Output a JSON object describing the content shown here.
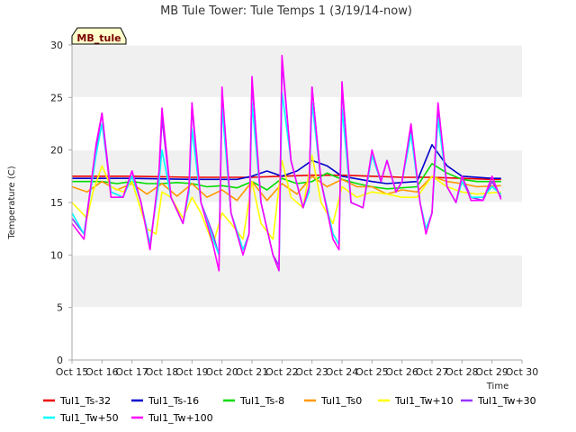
{
  "chart_data": {
    "type": "line",
    "title": "MB Tule Tower: Tule Temps 1 (3/19/14-now)",
    "xlabel": "Time",
    "ylabel": "Temperature (C)",
    "ylim": [
      0,
      30
    ],
    "yticks": [
      0,
      5,
      10,
      15,
      20,
      25,
      30
    ],
    "xlim": [
      15,
      30
    ],
    "x_tick_labels": [
      "Oct 15",
      "Oct 16",
      "Oct 17",
      "Oct 18",
      "Oct 19",
      "Oct 20",
      "Oct 21",
      "Oct 22",
      "Oct 23",
      "Oct 24",
      "Oct 25",
      "Oct 26",
      "Oct 27",
      "Oct 28",
      "Oct 29",
      "Oct 30"
    ],
    "badge": "MB_tule",
    "grid": "horizontal bands",
    "legend_position": "bottom",
    "series": [
      {
        "name": "Tul1_Ts-32",
        "color": "#ee0000",
        "points": [
          [
            15.0,
            17.5
          ],
          [
            17.0,
            17.5
          ],
          [
            19.0,
            17.4
          ],
          [
            21.0,
            17.4
          ],
          [
            22.0,
            17.5
          ],
          [
            23.0,
            17.6
          ],
          [
            24.0,
            17.6
          ],
          [
            25.0,
            17.5
          ],
          [
            26.0,
            17.4
          ],
          [
            27.0,
            17.4
          ],
          [
            28.0,
            17.3
          ],
          [
            29.0,
            17.2
          ],
          [
            29.3,
            17.2
          ]
        ]
      },
      {
        "name": "Tul1_Ts-16",
        "color": "#0000cc",
        "points": [
          [
            15.0,
            17.3
          ],
          [
            17.0,
            17.3
          ],
          [
            19.0,
            17.2
          ],
          [
            20.5,
            17.2
          ],
          [
            21.0,
            17.5
          ],
          [
            21.5,
            18.0
          ],
          [
            22.0,
            17.5
          ],
          [
            22.5,
            18.0
          ],
          [
            23.0,
            19.0
          ],
          [
            23.5,
            18.5
          ],
          [
            24.0,
            17.5
          ],
          [
            25.0,
            17.0
          ],
          [
            25.5,
            16.8
          ],
          [
            26.0,
            16.9
          ],
          [
            26.5,
            17.0
          ],
          [
            27.0,
            20.5
          ],
          [
            27.5,
            18.5
          ],
          [
            28.0,
            17.5
          ],
          [
            29.0,
            17.3
          ],
          [
            29.3,
            17.3
          ]
        ]
      },
      {
        "name": "Tul1_Ts-8",
        "color": "#00dd00",
        "points": [
          [
            15.0,
            17.0
          ],
          [
            16.0,
            17.0
          ],
          [
            16.5,
            16.8
          ],
          [
            17.0,
            17.0
          ],
          [
            17.5,
            16.8
          ],
          [
            18.0,
            16.8
          ],
          [
            18.5,
            16.9
          ],
          [
            19.0,
            16.8
          ],
          [
            19.5,
            16.5
          ],
          [
            20.0,
            16.6
          ],
          [
            20.5,
            16.4
          ],
          [
            21.0,
            17.0
          ],
          [
            21.5,
            16.2
          ],
          [
            22.0,
            17.3
          ],
          [
            22.5,
            16.8
          ],
          [
            23.0,
            17.0
          ],
          [
            23.5,
            17.8
          ],
          [
            24.0,
            17.2
          ],
          [
            24.5,
            16.8
          ],
          [
            25.0,
            16.5
          ],
          [
            25.5,
            16.3
          ],
          [
            26.0,
            16.4
          ],
          [
            26.5,
            16.5
          ],
          [
            27.0,
            18.7
          ],
          [
            27.5,
            17.8
          ],
          [
            28.0,
            17.2
          ],
          [
            28.5,
            17.0
          ],
          [
            29.3,
            17.0
          ]
        ]
      },
      {
        "name": "Tul1_Ts0",
        "color": "#ff9900",
        "points": [
          [
            15.0,
            16.5
          ],
          [
            15.5,
            16.0
          ],
          [
            16.0,
            17.0
          ],
          [
            16.5,
            16.2
          ],
          [
            17.0,
            16.8
          ],
          [
            17.5,
            15.8
          ],
          [
            18.0,
            16.8
          ],
          [
            18.5,
            15.6
          ],
          [
            19.0,
            16.8
          ],
          [
            19.5,
            15.5
          ],
          [
            20.0,
            16.2
          ],
          [
            20.5,
            15.2
          ],
          [
            21.0,
            17.0
          ],
          [
            21.5,
            15.2
          ],
          [
            22.0,
            16.8
          ],
          [
            22.5,
            15.8
          ],
          [
            23.0,
            17.5
          ],
          [
            23.5,
            16.5
          ],
          [
            24.0,
            17.2
          ],
          [
            24.5,
            16.5
          ],
          [
            25.0,
            16.5
          ],
          [
            25.5,
            15.8
          ],
          [
            26.0,
            16.2
          ],
          [
            26.5,
            16.0
          ],
          [
            27.0,
            17.5
          ],
          [
            27.5,
            17.0
          ],
          [
            28.0,
            16.8
          ],
          [
            28.5,
            16.5
          ],
          [
            29.3,
            16.6
          ]
        ]
      },
      {
        "name": "Tul1_Tw+10",
        "color": "#ffff00",
        "points": [
          [
            15.0,
            15.0
          ],
          [
            15.5,
            13.5
          ],
          [
            15.7,
            16.0
          ],
          [
            16.0,
            18.5
          ],
          [
            16.3,
            16.5
          ],
          [
            16.7,
            16.0
          ],
          [
            17.0,
            17.0
          ],
          [
            17.5,
            12.5
          ],
          [
            17.8,
            12.0
          ],
          [
            18.0,
            16.0
          ],
          [
            18.3,
            15.5
          ],
          [
            18.7,
            13.5
          ],
          [
            19.0,
            15.5
          ],
          [
            19.3,
            14.0
          ],
          [
            19.7,
            11.0
          ],
          [
            20.0,
            14.0
          ],
          [
            20.3,
            13.0
          ],
          [
            20.7,
            11.5
          ],
          [
            21.0,
            17.0
          ],
          [
            21.3,
            13.0
          ],
          [
            21.7,
            11.5
          ],
          [
            22.0,
            19.0
          ],
          [
            22.3,
            15.5
          ],
          [
            22.7,
            14.5
          ],
          [
            23.0,
            19.5
          ],
          [
            23.3,
            15.0
          ],
          [
            23.7,
            13.0
          ],
          [
            24.0,
            16.5
          ],
          [
            24.5,
            15.5
          ],
          [
            25.0,
            16.0
          ],
          [
            25.5,
            15.8
          ],
          [
            26.0,
            15.5
          ],
          [
            26.5,
            15.5
          ],
          [
            27.0,
            17.5
          ],
          [
            27.5,
            16.5
          ],
          [
            28.0,
            16.0
          ],
          [
            28.5,
            15.8
          ],
          [
            29.3,
            16.0
          ]
        ]
      },
      {
        "name": "Tul1_Tw+30",
        "color": "#9933ff",
        "points": [
          [
            15.0,
            13.5
          ],
          [
            15.4,
            12.0
          ],
          [
            15.8,
            20.0
          ],
          [
            16.0,
            23.5
          ],
          [
            16.3,
            16.0
          ],
          [
            16.7,
            15.5
          ],
          [
            17.0,
            18.0
          ],
          [
            17.3,
            15.0
          ],
          [
            17.6,
            11.0
          ],
          [
            17.9,
            17.5
          ],
          [
            18.0,
            23.0
          ],
          [
            18.3,
            15.5
          ],
          [
            18.7,
            13.0
          ],
          [
            18.9,
            16.0
          ],
          [
            19.0,
            24.0
          ],
          [
            19.3,
            15.0
          ],
          [
            19.7,
            12.0
          ],
          [
            19.9,
            10.0
          ],
          [
            20.0,
            25.5
          ],
          [
            20.3,
            14.0
          ],
          [
            20.7,
            10.5
          ],
          [
            20.9,
            12.0
          ],
          [
            21.0,
            26.5
          ],
          [
            21.3,
            15.0
          ],
          [
            21.7,
            10.0
          ],
          [
            21.9,
            9.0
          ],
          [
            22.0,
            28.5
          ],
          [
            22.3,
            19.0
          ],
          [
            22.7,
            14.5
          ],
          [
            22.9,
            16.0
          ],
          [
            23.0,
            26.0
          ],
          [
            23.3,
            17.0
          ],
          [
            23.7,
            12.0
          ],
          [
            23.9,
            11.0
          ],
          [
            24.0,
            26.0
          ],
          [
            24.3,
            15.0
          ],
          [
            24.7,
            14.5
          ],
          [
            25.0,
            19.5
          ],
          [
            25.3,
            17.0
          ],
          [
            25.5,
            19.0
          ],
          [
            25.8,
            16.0
          ],
          [
            26.0,
            17.0
          ],
          [
            26.3,
            22.0
          ],
          [
            26.6,
            15.0
          ],
          [
            26.8,
            12.5
          ],
          [
            27.0,
            14.0
          ],
          [
            27.2,
            24.0
          ],
          [
            27.5,
            16.5
          ],
          [
            27.8,
            15.0
          ],
          [
            28.0,
            17.5
          ],
          [
            28.3,
            15.5
          ],
          [
            28.7,
            15.2
          ],
          [
            29.0,
            17.0
          ],
          [
            29.3,
            15.5
          ]
        ]
      },
      {
        "name": "Tul1_Tw+50",
        "color": "#00ffff",
        "points": [
          [
            15.0,
            14.0
          ],
          [
            15.4,
            12.0
          ],
          [
            15.8,
            19.5
          ],
          [
            16.0,
            22.5
          ],
          [
            16.3,
            16.0
          ],
          [
            16.7,
            15.5
          ],
          [
            17.0,
            17.5
          ],
          [
            17.3,
            15.0
          ],
          [
            17.6,
            11.0
          ],
          [
            17.9,
            17.0
          ],
          [
            18.0,
            20.0
          ],
          [
            18.3,
            15.5
          ],
          [
            18.7,
            13.0
          ],
          [
            18.9,
            16.0
          ],
          [
            19.0,
            22.0
          ],
          [
            19.3,
            15.0
          ],
          [
            19.7,
            11.5
          ],
          [
            19.9,
            10.0
          ],
          [
            20.0,
            24.0
          ],
          [
            20.3,
            14.0
          ],
          [
            20.7,
            10.5
          ],
          [
            20.9,
            12.0
          ],
          [
            21.0,
            24.5
          ],
          [
            21.3,
            15.0
          ],
          [
            21.7,
            10.0
          ],
          [
            21.9,
            8.5
          ],
          [
            22.0,
            25.5
          ],
          [
            22.3,
            19.0
          ],
          [
            22.7,
            14.5
          ],
          [
            22.9,
            16.0
          ],
          [
            23.0,
            24.5
          ],
          [
            23.3,
            17.0
          ],
          [
            23.7,
            12.0
          ],
          [
            23.9,
            11.0
          ],
          [
            24.0,
            24.0
          ],
          [
            24.3,
            15.0
          ],
          [
            24.7,
            14.5
          ],
          [
            25.0,
            19.5
          ],
          [
            25.3,
            17.0
          ],
          [
            25.5,
            19.0
          ],
          [
            25.8,
            16.0
          ],
          [
            26.0,
            17.0
          ],
          [
            26.3,
            21.5
          ],
          [
            26.6,
            15.0
          ],
          [
            26.8,
            12.5
          ],
          [
            27.0,
            14.0
          ],
          [
            27.2,
            23.0
          ],
          [
            27.5,
            16.5
          ],
          [
            27.8,
            15.0
          ],
          [
            28.0,
            17.0
          ],
          [
            28.3,
            15.5
          ],
          [
            28.7,
            15.5
          ],
          [
            29.0,
            16.5
          ],
          [
            29.3,
            15.8
          ]
        ]
      },
      {
        "name": "Tul1_Tw+100",
        "color": "#ff00ff",
        "points": [
          [
            15.0,
            13.0
          ],
          [
            15.4,
            11.5
          ],
          [
            15.8,
            20.5
          ],
          [
            16.0,
            23.5
          ],
          [
            16.3,
            15.5
          ],
          [
            16.7,
            15.5
          ],
          [
            17.0,
            18.0
          ],
          [
            17.3,
            15.0
          ],
          [
            17.6,
            10.5
          ],
          [
            17.9,
            18.0
          ],
          [
            18.0,
            24.0
          ],
          [
            18.3,
            15.5
          ],
          [
            18.7,
            13.0
          ],
          [
            18.9,
            16.5
          ],
          [
            19.0,
            24.5
          ],
          [
            19.3,
            15.0
          ],
          [
            19.7,
            11.0
          ],
          [
            19.9,
            8.5
          ],
          [
            20.0,
            26.0
          ],
          [
            20.3,
            14.0
          ],
          [
            20.7,
            10.0
          ],
          [
            20.9,
            12.0
          ],
          [
            21.0,
            27.0
          ],
          [
            21.3,
            15.0
          ],
          [
            21.7,
            10.0
          ],
          [
            21.9,
            8.5
          ],
          [
            22.0,
            29.0
          ],
          [
            22.3,
            19.0
          ],
          [
            22.7,
            14.5
          ],
          [
            22.9,
            16.5
          ],
          [
            23.0,
            26.0
          ],
          [
            23.3,
            17.0
          ],
          [
            23.7,
            11.5
          ],
          [
            23.9,
            10.5
          ],
          [
            24.0,
            26.5
          ],
          [
            24.3,
            15.0
          ],
          [
            24.7,
            14.5
          ],
          [
            25.0,
            20.0
          ],
          [
            25.3,
            17.0
          ],
          [
            25.5,
            19.0
          ],
          [
            25.8,
            16.0
          ],
          [
            26.0,
            17.0
          ],
          [
            26.3,
            22.5
          ],
          [
            26.6,
            15.0
          ],
          [
            26.8,
            12.0
          ],
          [
            27.0,
            14.0
          ],
          [
            27.2,
            24.5
          ],
          [
            27.5,
            16.5
          ],
          [
            27.8,
            15.0
          ],
          [
            28.0,
            17.5
          ],
          [
            28.3,
            15.2
          ],
          [
            28.7,
            15.2
          ],
          [
            29.0,
            17.5
          ],
          [
            29.3,
            15.3
          ]
        ]
      }
    ]
  }
}
